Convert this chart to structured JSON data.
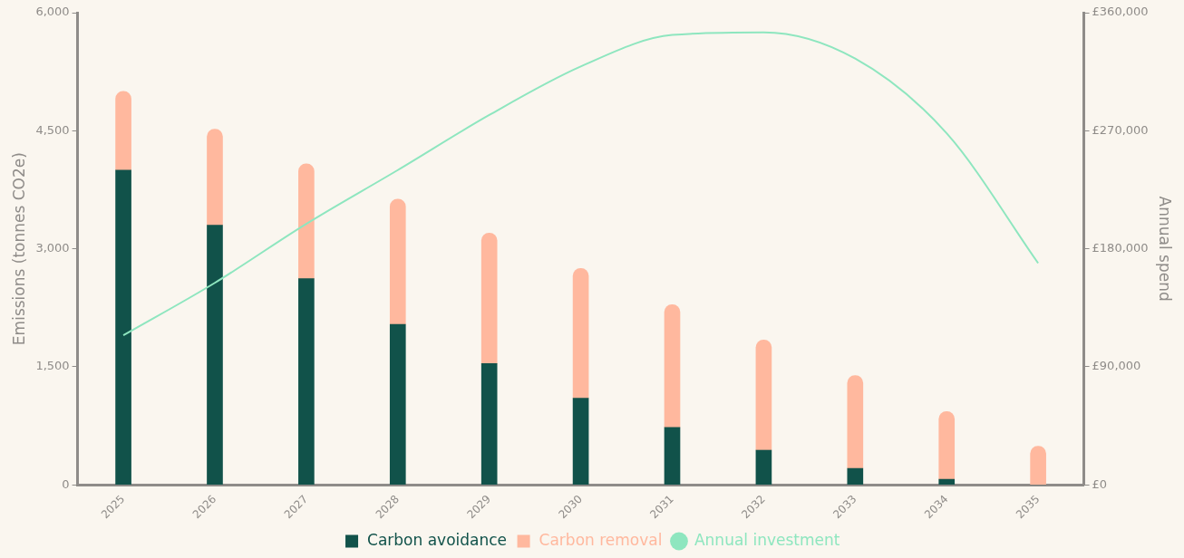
{
  "chart_data": {
    "type": "bar",
    "stacked": true,
    "ylabel": "Emissions (tonnes CO2e)",
    "y2label": "Annual spend",
    "categories": [
      "2025",
      "2026",
      "2027",
      "2028",
      "2029",
      "2030",
      "2031",
      "2032",
      "2033",
      "2034",
      "2035"
    ],
    "series": [
      {
        "name": "Carbon avoidance",
        "color": "#11524a",
        "values": [
          4000,
          3300,
          2620,
          2040,
          1540,
          1100,
          730,
          440,
          210,
          70,
          0
        ]
      },
      {
        "name": "Carbon removal",
        "color": "#ffb89e",
        "values": [
          1000,
          1220,
          1460,
          1590,
          1660,
          1650,
          1560,
          1400,
          1180,
          860,
          490
        ]
      },
      {
        "name": "Annual investment",
        "type": "line",
        "axis": "y2",
        "color": "#8ee6bf",
        "values": [
          114000,
          154000,
          199000,
          240000,
          282000,
          319000,
          343000,
          345000,
          325000,
          268000,
          169000
        ]
      }
    ],
    "ylim": [
      0,
      6000
    ],
    "yticks": [
      0,
      {
        "value": 1500,
        "label": "1,500"
      },
      {
        "value": 3000,
        "label": "3,000"
      },
      {
        "value": 4500,
        "label": "4,500"
      },
      {
        "value": 6000,
        "label": "6,000"
      }
    ],
    "y2lim": [
      0,
      360000
    ],
    "y2ticks": [
      {
        "value": 0,
        "label": "£0"
      },
      {
        "value": 90000,
        "label": "£90,000"
      },
      {
        "value": 180000,
        "label": "£180,000"
      },
      {
        "value": 270000,
        "label": "£270,000"
      },
      {
        "value": 360000,
        "label": "£360,000"
      }
    ],
    "grid": false,
    "legend": "bottom"
  }
}
